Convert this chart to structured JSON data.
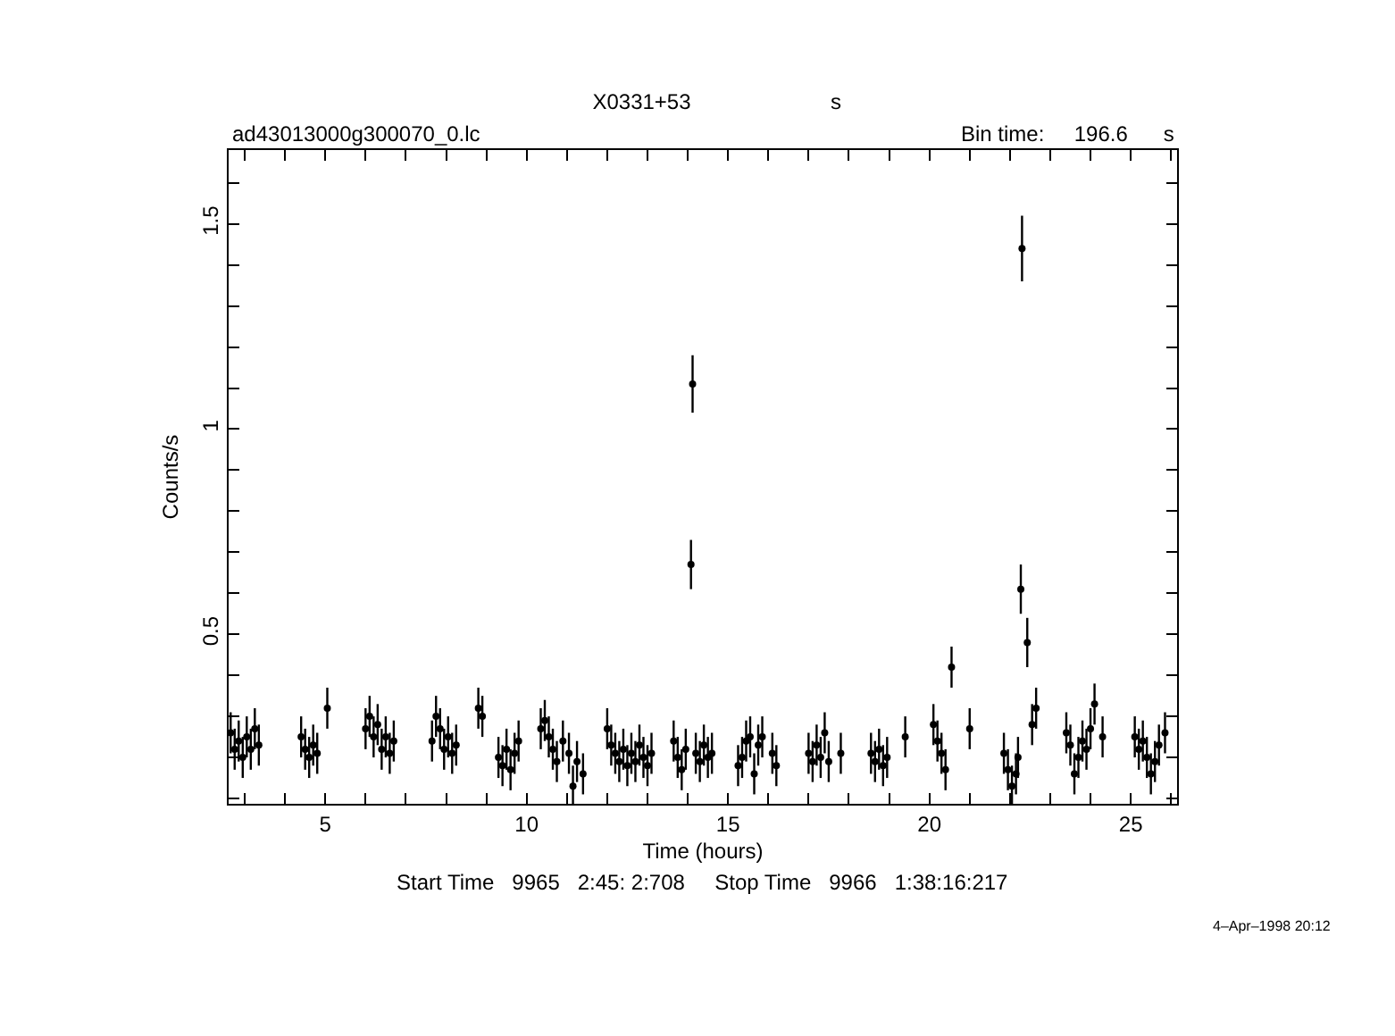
{
  "chart_data": {
    "type": "scatter",
    "title": "X0331+53",
    "xlabel": "Time (hours)",
    "ylabel": "Counts/s",
    "annotations": [
      "s",
      "ad43013000g300070_0.lc",
      "Bin time:     196.6      s",
      "Start Time   9965   2:45: 2:708     Stop Time   9966   1:38:16:217",
      "4–Apr–1998 20:12"
    ],
    "x": [
      2.65,
      2.75,
      2.85,
      2.95,
      3.05,
      3.15,
      3.25,
      3.35,
      4.4,
      4.5,
      4.6,
      4.7,
      4.8,
      5.05,
      6.0,
      6.1,
      6.2,
      6.3,
      6.4,
      6.5,
      6.6,
      6.7,
      7.65,
      7.75,
      7.85,
      7.95,
      8.05,
      8.15,
      8.25,
      8.8,
      8.9,
      9.3,
      9.4,
      9.5,
      9.6,
      9.7,
      9.8,
      10.35,
      10.45,
      10.55,
      10.65,
      10.75,
      10.9,
      11.05,
      11.15,
      11.25,
      11.4,
      12.0,
      12.1,
      12.2,
      12.3,
      12.4,
      12.5,
      12.6,
      12.7,
      12.8,
      12.9,
      13.0,
      13.1,
      13.65,
      13.75,
      13.85,
      13.95,
      14.08,
      14.12,
      14.2,
      14.3,
      14.4,
      14.5,
      14.6,
      15.25,
      15.35,
      15.45,
      15.55,
      15.65,
      15.75,
      15.85,
      16.1,
      16.2,
      17.0,
      17.1,
      17.2,
      17.3,
      17.4,
      17.5,
      17.8,
      18.55,
      18.65,
      18.75,
      18.85,
      18.95,
      19.4,
      20.1,
      20.2,
      20.3,
      20.4,
      20.55,
      21.0,
      21.85,
      21.95,
      22.05,
      22.15,
      22.2,
      22.27,
      22.3,
      22.43,
      22.55,
      22.65,
      23.4,
      23.5,
      23.6,
      23.7,
      23.8,
      23.9,
      24.0,
      24.1,
      24.3,
      25.1,
      25.2,
      25.3,
      25.4,
      25.5,
      25.6,
      25.7,
      25.85
    ],
    "values": [
      0.26,
      0.22,
      0.24,
      0.2,
      0.25,
      0.22,
      0.27,
      0.23,
      0.25,
      0.22,
      0.2,
      0.23,
      0.21,
      0.32,
      0.27,
      0.3,
      0.25,
      0.28,
      0.22,
      0.25,
      0.21,
      0.24,
      0.24,
      0.3,
      0.27,
      0.22,
      0.25,
      0.21,
      0.23,
      0.32,
      0.3,
      0.2,
      0.18,
      0.22,
      0.17,
      0.21,
      0.24,
      0.27,
      0.29,
      0.25,
      0.22,
      0.19,
      0.24,
      0.21,
      0.13,
      0.19,
      0.16,
      0.27,
      0.23,
      0.21,
      0.19,
      0.22,
      0.18,
      0.21,
      0.19,
      0.23,
      0.2,
      0.18,
      0.21,
      0.24,
      0.2,
      0.17,
      0.22,
      0.67,
      1.11,
      0.21,
      0.19,
      0.23,
      0.2,
      0.21,
      0.18,
      0.2,
      0.24,
      0.25,
      0.16,
      0.23,
      0.25,
      0.21,
      0.18,
      0.21,
      0.19,
      0.23,
      0.2,
      0.26,
      0.19,
      0.21,
      0.21,
      0.19,
      0.22,
      0.18,
      0.2,
      0.25,
      0.28,
      0.24,
      0.21,
      0.17,
      0.42,
      0.27,
      0.21,
      0.17,
      0.13,
      0.16,
      0.2,
      0.61,
      1.44,
      0.48,
      0.28,
      0.32,
      0.26,
      0.23,
      0.16,
      0.2,
      0.24,
      0.22,
      0.27,
      0.33,
      0.25,
      0.25,
      0.22,
      0.24,
      0.2,
      0.16,
      0.19,
      0.23,
      0.26
    ],
    "errors": [
      0.05,
      0.05,
      0.05,
      0.05,
      0.05,
      0.05,
      0.05,
      0.05,
      0.05,
      0.05,
      0.05,
      0.05,
      0.05,
      0.05,
      0.05,
      0.05,
      0.05,
      0.05,
      0.05,
      0.05,
      0.05,
      0.05,
      0.05,
      0.05,
      0.05,
      0.05,
      0.05,
      0.05,
      0.05,
      0.05,
      0.05,
      0.05,
      0.05,
      0.05,
      0.05,
      0.05,
      0.05,
      0.05,
      0.05,
      0.05,
      0.05,
      0.05,
      0.05,
      0.05,
      0.05,
      0.05,
      0.05,
      0.05,
      0.05,
      0.05,
      0.05,
      0.05,
      0.05,
      0.05,
      0.05,
      0.05,
      0.05,
      0.05,
      0.05,
      0.05,
      0.05,
      0.05,
      0.05,
      0.06,
      0.07,
      0.05,
      0.05,
      0.05,
      0.05,
      0.05,
      0.05,
      0.05,
      0.05,
      0.05,
      0.05,
      0.05,
      0.05,
      0.05,
      0.05,
      0.05,
      0.05,
      0.05,
      0.05,
      0.05,
      0.05,
      0.05,
      0.05,
      0.05,
      0.05,
      0.05,
      0.05,
      0.05,
      0.05,
      0.05,
      0.05,
      0.05,
      0.05,
      0.05,
      0.05,
      0.05,
      0.05,
      0.05,
      0.05,
      0.06,
      0.08,
      0.06,
      0.05,
      0.05,
      0.05,
      0.05,
      0.05,
      0.05,
      0.05,
      0.05,
      0.05,
      0.05,
      0.05,
      0.05,
      0.05,
      0.05,
      0.05,
      0.05,
      0.05,
      0.05,
      0.05
    ],
    "xerrors": [
      0.03,
      0.03,
      0.03,
      0.03,
      0.03,
      0.03,
      0.03,
      0.03,
      0.03,
      0.03,
      0.03,
      0.03,
      0.03,
      0.03,
      0.03,
      0.03,
      0.03,
      0.03,
      0.03,
      0.03,
      0.03,
      0.03,
      0.03,
      0.03,
      0.03,
      0.03,
      0.03,
      0.03,
      0.03,
      0.03,
      0.03,
      0.03,
      0.03,
      0.03,
      0.03,
      0.03,
      0.03,
      0.03,
      0.03,
      0.03,
      0.03,
      0.03,
      0.03,
      0.03,
      0.03,
      0.03,
      0.03,
      0.03,
      0.03,
      0.03,
      0.03,
      0.03,
      0.03,
      0.03,
      0.03,
      0.03,
      0.03,
      0.03,
      0.03,
      0.03,
      0.03,
      0.03,
      0.03,
      0.03,
      0.03,
      0.03,
      0.03,
      0.03,
      0.03,
      0.03,
      0.03,
      0.03,
      0.03,
      0.03,
      0.03,
      0.03,
      0.03,
      0.03,
      0.03,
      0.03,
      0.03,
      0.03,
      0.03,
      0.03,
      0.03,
      0.03,
      0.03,
      0.03,
      0.03,
      0.03,
      0.03,
      0.03,
      0.03,
      0.03,
      0.03,
      0.03,
      0.03,
      0.03,
      0.03,
      0.03,
      0.03,
      0.03,
      0.03,
      0.03,
      0.03,
      0.03,
      0.03,
      0.03,
      0.03,
      0.03,
      0.03,
      0.03,
      0.03,
      0.03,
      0.03,
      0.03,
      0.03,
      0.03,
      0.03,
      0.03,
      0.03,
      0.03,
      0.03,
      0.03,
      0.03
    ],
    "color": "#000000",
    "grid": false,
    "xlim": [
      2.6,
      26.15
    ],
    "ylim": [
      0.087,
      1.68
    ],
    "xticks": [
      {
        "value": 3,
        "label": null
      },
      {
        "value": 4,
        "label": null
      },
      5,
      {
        "value": 6,
        "label": null
      },
      {
        "value": 7,
        "label": null
      },
      {
        "value": 8,
        "label": null
      },
      {
        "value": 9,
        "label": null
      },
      10,
      {
        "value": 11,
        "label": null
      },
      {
        "value": 12,
        "label": null
      },
      {
        "value": 13,
        "label": null
      },
      {
        "value": 14,
        "label": null
      },
      15,
      {
        "value": 16,
        "label": null
      },
      {
        "value": 17,
        "label": null
      },
      {
        "value": 18,
        "label": null
      },
      {
        "value": 19,
        "label": null
      },
      20,
      {
        "value": 21,
        "label": null
      },
      {
        "value": 22,
        "label": null
      },
      {
        "value": 23,
        "label": null
      },
      {
        "value": 24,
        "label": null
      },
      25,
      {
        "value": 26,
        "label": null
      }
    ],
    "yticks": [
      {
        "value": 0.1,
        "label": null
      },
      {
        "value": 0.2,
        "label": null
      },
      {
        "value": 0.3,
        "label": null
      },
      {
        "value": 0.4,
        "label": null
      },
      0.5,
      {
        "value": 0.6,
        "label": null
      },
      {
        "value": 0.7,
        "label": null
      },
      {
        "value": 0.8,
        "label": null
      },
      {
        "value": 0.9,
        "label": null
      },
      1,
      {
        "value": 1.1,
        "label": null
      },
      {
        "value": 1.2,
        "label": null
      },
      {
        "value": 1.3,
        "label": null
      },
      {
        "value": 1.4,
        "label": null
      },
      1.5,
      {
        "value": 1.6,
        "label": null
      }
    ]
  }
}
